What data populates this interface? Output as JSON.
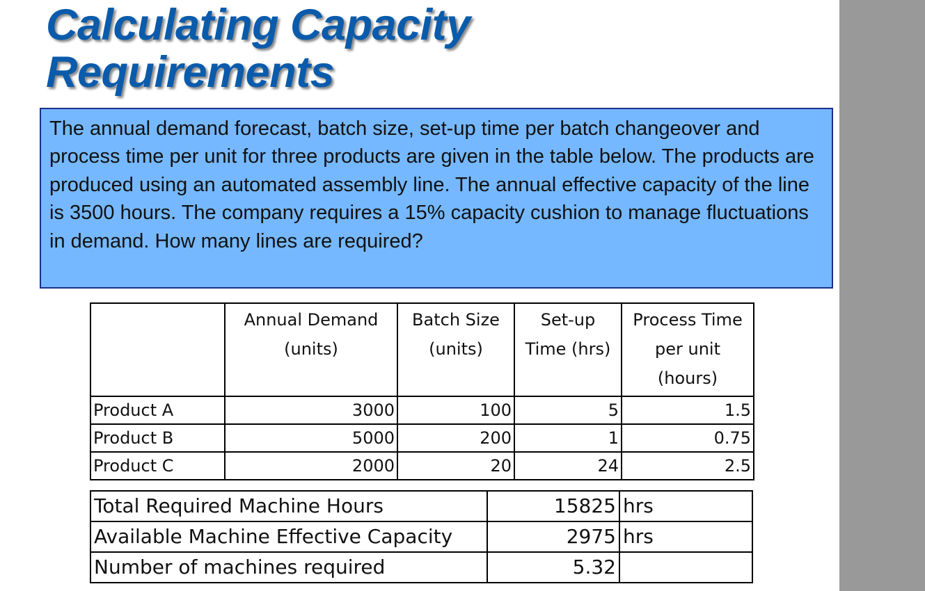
{
  "title_line1": "Calculating Capacity",
  "title_line2": "Requirements",
  "problem_text": "The annual demand forecast, batch size, set-up time per batch changeover and process time per unit for three products are given in the table below. The products are produced using an automated assembly line.  The annual effective capacity of the line is 3500 hours.  The company requires a 15% capacity cushion to manage fluctuations in demand.  How many lines are required?",
  "table": {
    "headers": [
      [
        ""
      ],
      [
        "Annual Demand",
        "(units)"
      ],
      [
        "Batch Size",
        "(units)"
      ],
      [
        "Set-up",
        "Time (hrs)"
      ],
      [
        "Process Time",
        "per unit",
        "(hours)"
      ]
    ],
    "rows": [
      {
        "product": "Product A",
        "demand": "3000",
        "batch": "100",
        "setup": "5",
        "process": "1.5"
      },
      {
        "product": "Product B",
        "demand": "5000",
        "batch": "200",
        "setup": "1",
        "process": "0.75"
      },
      {
        "product": "Product C",
        "demand": "2000",
        "batch": "20",
        "setup": "24",
        "process": "2.5"
      }
    ]
  },
  "summary": [
    {
      "label": "Total Required Machine Hours",
      "value": "15825",
      "unit": "hrs"
    },
    {
      "label": "Available Machine Effective Capacity",
      "value": "2975",
      "unit": "hrs"
    },
    {
      "label": "Number of machines required",
      "value": "5.32",
      "unit": ""
    }
  ],
  "colors": {
    "title": "#0a5bab",
    "box_bg": "#75b8ff",
    "box_border": "#1c2f8a",
    "sidebar": "#999999"
  }
}
